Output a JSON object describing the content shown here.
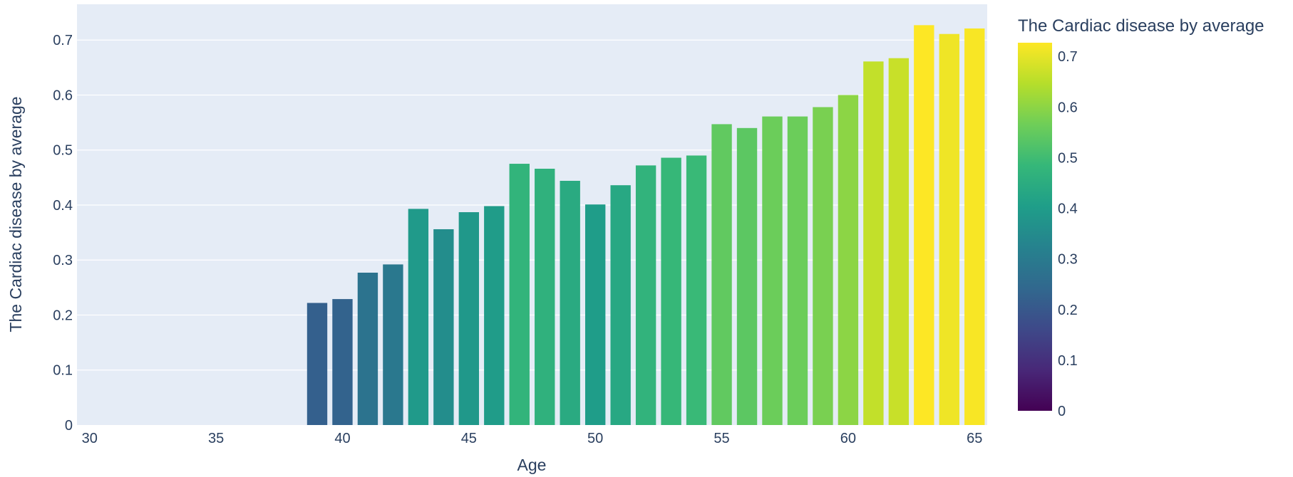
{
  "chart_data": {
    "type": "bar",
    "title": "",
    "xlabel": "Age",
    "ylabel": "The Cardiac disease by average",
    "x": [
      39,
      40,
      41,
      42,
      43,
      44,
      45,
      46,
      47,
      48,
      49,
      50,
      51,
      52,
      53,
      54,
      55,
      56,
      57,
      58,
      59,
      60,
      61,
      62,
      63,
      64,
      65
    ],
    "values": [
      0.222,
      0.229,
      0.277,
      0.292,
      0.393,
      0.356,
      0.387,
      0.398,
      0.475,
      0.466,
      0.444,
      0.401,
      0.436,
      0.472,
      0.486,
      0.49,
      0.547,
      0.54,
      0.561,
      0.561,
      0.578,
      0.6,
      0.661,
      0.667,
      0.727,
      0.711,
      0.721
    ],
    "xlim": [
      29.5,
      65.5
    ],
    "ylim": [
      0,
      0.765
    ],
    "x_ticks": [
      30,
      35,
      40,
      45,
      50,
      55,
      60,
      65
    ],
    "y_ticks": [
      0,
      0.1,
      0.2,
      0.3,
      0.4,
      0.5,
      0.6,
      0.7
    ],
    "grid": true,
    "colorbar": {
      "title": "The Cardiac disease by average",
      "colorscale": "Viridis",
      "range": [
        0,
        0.727
      ],
      "ticks": [
        0,
        0.1,
        0.2,
        0.3,
        0.4,
        0.5,
        0.6,
        0.7
      ],
      "placement": "right"
    },
    "colors": {
      "plot_background": "#e5ecf6",
      "grid": "#ffffff",
      "text": "#2a3f5f"
    }
  }
}
